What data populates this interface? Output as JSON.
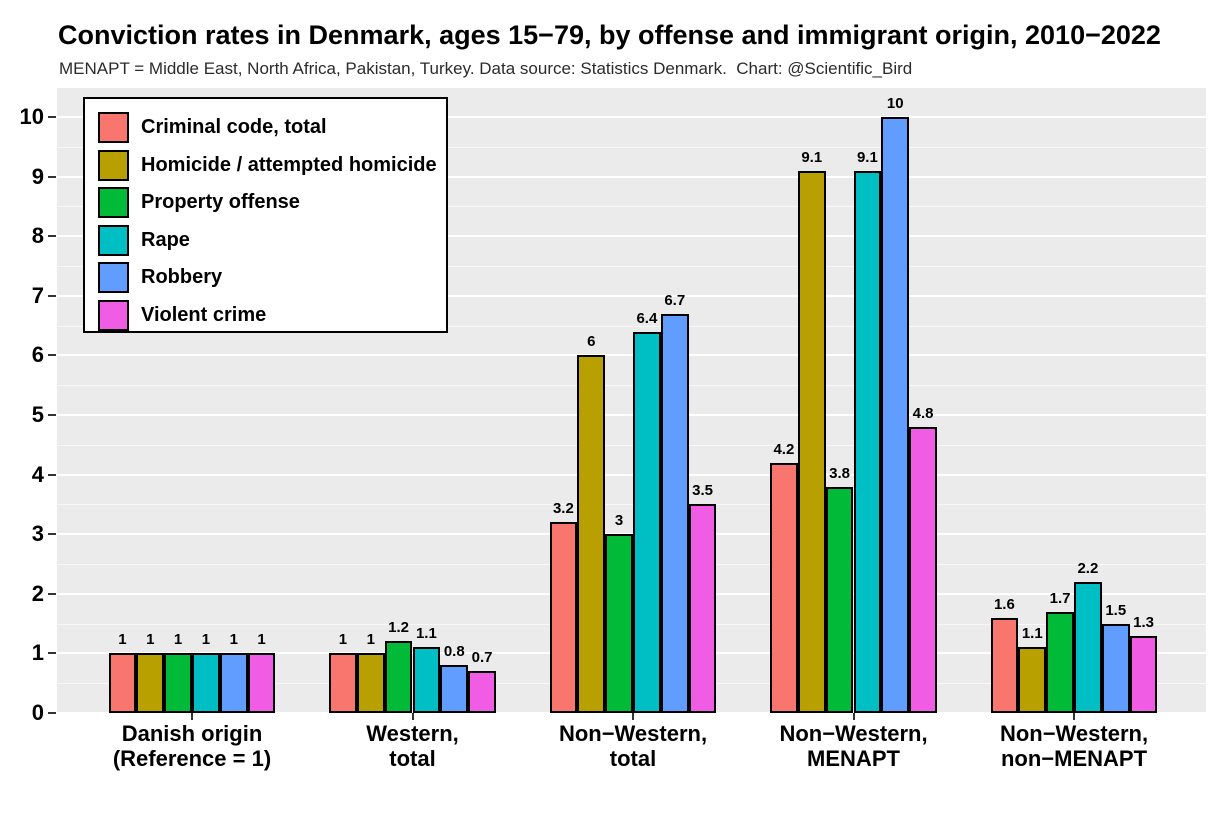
{
  "chart_data": {
    "type": "bar",
    "title": "Conviction rates in Denmark, ages 15−79, by offense and immigrant origin, 2010−2022",
    "subtitle": "MENAPT = Middle East, North Africa, Pakistan, Turkey. Data source: Statistics Denmark.  Chart: @Scientific_Bird",
    "categories": [
      [
        "Danish origin",
        "(Reference = 1)"
      ],
      [
        "Western,",
        "total"
      ],
      [
        "Non−Western,",
        "total"
      ],
      [
        "Non−Western,",
        "MENAPT"
      ],
      [
        "Non−Western,",
        "non−MENAPT"
      ]
    ],
    "series": [
      {
        "name": "Criminal code, total",
        "color": "#F8766D",
        "values": [
          1,
          1,
          3.2,
          4.2,
          1.6
        ]
      },
      {
        "name": "Homicide / attempted homicide",
        "color": "#B8A000",
        "values": [
          1,
          1,
          6,
          9.1,
          1.1
        ]
      },
      {
        "name": "Property offense",
        "color": "#00BA38",
        "values": [
          1,
          1.2,
          3,
          3.8,
          1.7
        ]
      },
      {
        "name": "Rape",
        "color": "#00BFC4",
        "values": [
          1,
          1.1,
          6.4,
          9.1,
          2.2
        ]
      },
      {
        "name": "Robbery",
        "color": "#619CFF",
        "values": [
          1,
          0.8,
          6.7,
          10,
          1.5
        ]
      },
      {
        "name": "Violent crime",
        "color": "#F05CE3",
        "values": [
          1,
          0.7,
          3.5,
          4.8,
          1.3
        ]
      }
    ],
    "xlabel": "",
    "ylabel": "",
    "ylim": [
      0,
      10
    ],
    "yticks": [
      0,
      1,
      2,
      3,
      4,
      5,
      6,
      7,
      8,
      9,
      10
    ],
    "grid": {
      "on": true,
      "major_color": "#FFFFFF",
      "minor_color": "#FFFFFF",
      "minor_step": 0.5
    },
    "panel_background": "#EBEBEB",
    "legend_position": "inside-top-left",
    "bar_border_color": "#000000"
  }
}
